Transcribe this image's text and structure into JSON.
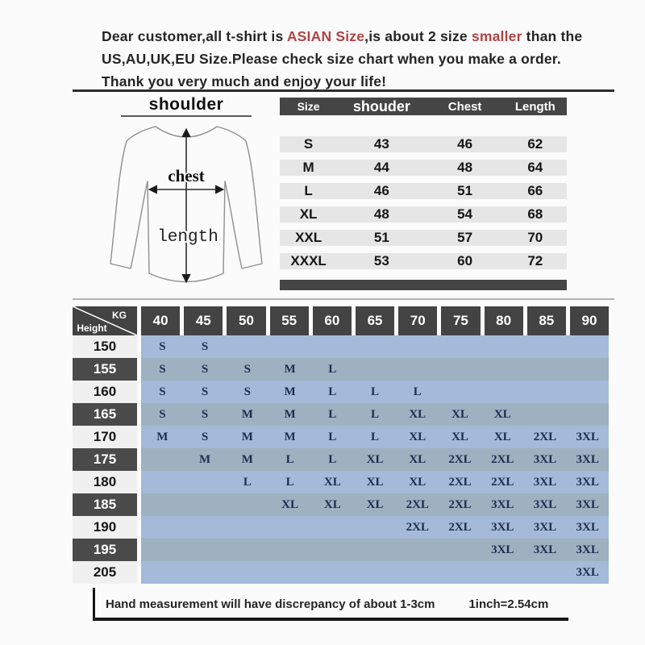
{
  "intro": {
    "line1": {
      "pre": "Dear customer,all t-shirt is ",
      "red1": "ASIAN Size",
      "mid": ",is about 2 size ",
      "red2": "smaller",
      "post": " than the"
    },
    "line2": "US,AU,UK,EU Size.Please check size chart when you make a order.",
    "line3": "Thank you very much and enjoy your life!",
    "accent_red": "#b04444"
  },
  "diagram": {
    "shoulder_label": "shoulder",
    "chest_label": "chest",
    "length_label": "length"
  },
  "size_table": {
    "headers": [
      "Size",
      "shouder",
      "Chest",
      "Length"
    ],
    "rows": [
      [
        "S",
        "43",
        "46",
        "62"
      ],
      [
        "M",
        "44",
        "48",
        "64"
      ],
      [
        "L",
        "46",
        "51",
        "66"
      ],
      [
        "XL",
        "48",
        "54",
        "68"
      ],
      [
        "XXL",
        "51",
        "57",
        "70"
      ],
      [
        "XXXL",
        "53",
        "60",
        "72"
      ]
    ]
  },
  "matrix": {
    "corner_top": "KG",
    "corner_bottom": "Height",
    "columns": [
      "40",
      "45",
      "50",
      "55",
      "60",
      "65",
      "70",
      "75",
      "80",
      "85",
      "90"
    ],
    "rows": [
      {
        "label": "150",
        "cells": [
          "S",
          "S",
          "",
          "",
          "",
          "",
          "",
          "",
          "",
          "",
          ""
        ]
      },
      {
        "label": "155",
        "cells": [
          "S",
          "S",
          "S",
          "M",
          "L",
          "",
          "",
          "",
          "",
          "",
          ""
        ]
      },
      {
        "label": "160",
        "cells": [
          "S",
          "S",
          "S",
          "M",
          "L",
          "L",
          "L",
          "",
          "",
          "",
          ""
        ]
      },
      {
        "label": "165",
        "cells": [
          "S",
          "S",
          "M",
          "M",
          "L",
          "L",
          "XL",
          "XL",
          "XL",
          "",
          ""
        ]
      },
      {
        "label": "170",
        "cells": [
          "M",
          "S",
          "M",
          "M",
          "L",
          "L",
          "XL",
          "XL",
          "XL",
          "2XL",
          "3XL"
        ]
      },
      {
        "label": "175",
        "cells": [
          "",
          "M",
          "M",
          "L",
          "L",
          "XL",
          "XL",
          "2XL",
          "2XL",
          "3XL",
          "3XL"
        ]
      },
      {
        "label": "180",
        "cells": [
          "",
          "",
          "L",
          "L",
          "XL",
          "XL",
          "XL",
          "2XL",
          "2XL",
          "3XL",
          "3XL"
        ]
      },
      {
        "label": "185",
        "cells": [
          "",
          "",
          "",
          "XL",
          "XL",
          "XL",
          "2XL",
          "2XL",
          "3XL",
          "3XL",
          "3XL"
        ]
      },
      {
        "label": "190",
        "cells": [
          "",
          "",
          "",
          "",
          "",
          "",
          "2XL",
          "2XL",
          "3XL",
          "3XL",
          "3XL"
        ]
      },
      {
        "label": "195",
        "cells": [
          "",
          "",
          "",
          "",
          "",
          "",
          "",
          "",
          "3XL",
          "3XL",
          "3XL"
        ]
      },
      {
        "label": "205",
        "cells": [
          "",
          "",
          "",
          "",
          "",
          "",
          "",
          "",
          "",
          "",
          "3XL"
        ]
      }
    ],
    "colors": {
      "band_blue": "#a4bad8",
      "band_gray": "#9db1c0",
      "header_dark": "#434343",
      "cell_text_navy": "#1e2c50"
    }
  },
  "footer": {
    "note": "Hand measurement will have discrepancy of about  1-3cm",
    "conversion": "1inch=2.54cm"
  }
}
